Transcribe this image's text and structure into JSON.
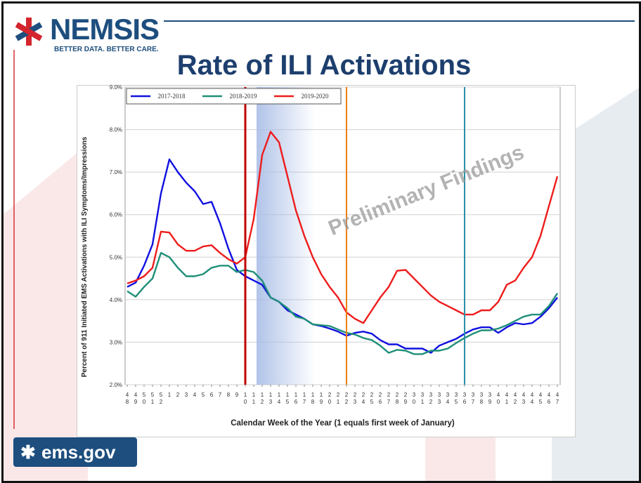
{
  "slide": {
    "brand": "NEMSIS",
    "tagline": "BETTER DATA. BETTER CARE.",
    "title": "Rate of ILI Activations",
    "footer_logo": "ems.gov",
    "watermark": "Preliminary Findings",
    "colors": {
      "navy": "#1d4e7e",
      "red": "#d3252d"
    }
  },
  "chart_data": {
    "type": "line",
    "title": "Rate of ILI Activations",
    "xlabel": "Calendar Week of the Year (1 equals first week of January)",
    "ylabel": "Percent of 911 Initiated EMS Activations with ILI Symptoms/Impressions",
    "ylim": [
      2.0,
      9.0
    ],
    "yticks": [
      "2.0%",
      "3.0%",
      "4.0%",
      "5.0%",
      "6.0%",
      "7.0%",
      "8.0%",
      "9.0%"
    ],
    "x": [
      "48",
      "49",
      "50",
      "51",
      "52",
      "1",
      "2",
      "3",
      "4",
      "5",
      "6",
      "7",
      "8",
      "9",
      "10",
      "11",
      "12",
      "13",
      "14",
      "15",
      "16",
      "17",
      "18",
      "19",
      "20",
      "21",
      "22",
      "23",
      "24",
      "25",
      "26",
      "27",
      "28",
      "29",
      "30",
      "31",
      "32",
      "33",
      "34",
      "35",
      "36",
      "37",
      "38",
      "39",
      "40",
      "41",
      "42",
      "43",
      "44",
      "45",
      "46",
      "47"
    ],
    "grid": true,
    "legend_position": "top",
    "series": [
      {
        "name": "2017-2018",
        "color": "#1010e0",
        "values": [
          4.3,
          4.4,
          4.8,
          5.3,
          6.5,
          7.3,
          7.0,
          6.75,
          6.55,
          6.25,
          6.3,
          5.8,
          5.2,
          4.7,
          4.55,
          4.45,
          4.35,
          4.05,
          3.95,
          3.75,
          3.65,
          3.55,
          3.42,
          3.38,
          3.32,
          3.25,
          3.15,
          3.22,
          3.25,
          3.2,
          3.05,
          2.95,
          2.95,
          2.85,
          2.85,
          2.85,
          2.75,
          2.92,
          3.0,
          3.08,
          3.2,
          3.3,
          3.35,
          3.35,
          3.22,
          3.35,
          3.45,
          3.42,
          3.45,
          3.6,
          3.8,
          4.05
        ]
      },
      {
        "name": "2018-2019",
        "color": "#1f8f78",
        "values": [
          4.2,
          4.07,
          4.3,
          4.5,
          5.1,
          5.0,
          4.75,
          4.55,
          4.55,
          4.6,
          4.75,
          4.8,
          4.8,
          4.65,
          4.7,
          4.65,
          4.45,
          4.05,
          3.95,
          3.8,
          3.6,
          3.55,
          3.42,
          3.4,
          3.38,
          3.3,
          3.22,
          3.18,
          3.1,
          3.05,
          2.92,
          2.75,
          2.82,
          2.8,
          2.72,
          2.72,
          2.8,
          2.8,
          2.85,
          2.98,
          3.1,
          3.2,
          3.28,
          3.28,
          3.32,
          3.4,
          3.5,
          3.6,
          3.65,
          3.65,
          3.85,
          4.15
        ]
      },
      {
        "name": "2019-2020",
        "color": "#ee1c1c",
        "values": [
          4.38,
          4.45,
          4.55,
          4.75,
          5.6,
          5.58,
          5.3,
          5.15,
          5.15,
          5.25,
          5.28,
          5.1,
          4.95,
          4.85,
          5.0,
          5.9,
          7.4,
          7.95,
          7.7,
          6.9,
          6.1,
          5.5,
          5.0,
          4.6,
          4.3,
          4.05,
          3.7,
          3.55,
          3.45,
          3.75,
          4.05,
          4.3,
          4.68,
          4.7,
          4.5,
          4.3,
          4.1,
          3.95,
          3.85,
          3.75,
          3.65,
          3.65,
          3.75,
          3.75,
          3.95,
          4.35,
          4.45,
          4.75,
          5.0,
          5.5,
          6.2,
          6.9
        ]
      }
    ],
    "markers": [
      {
        "week": "10",
        "color": "#c00000"
      },
      {
        "week": "22",
        "color": "#f07d10"
      },
      {
        "week": "36",
        "color": "#2a8fa8"
      }
    ],
    "shaded_region": {
      "from_week": "12",
      "to_week": "19",
      "color": "#a9bde6"
    }
  }
}
